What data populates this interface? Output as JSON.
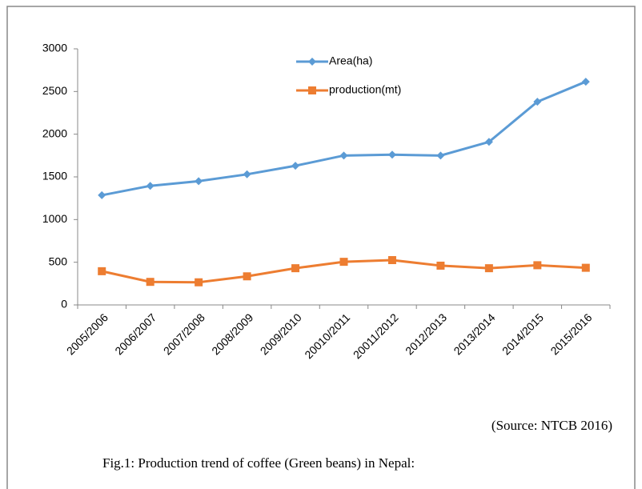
{
  "chart_data": {
    "type": "line",
    "categories": [
      "2005/2006",
      "2006/2007",
      "2007/2008",
      "2008/2009",
      "2009/2010",
      "20010/2011",
      "20011/2012",
      "2012/2013",
      "2013/2014",
      "2014/2015",
      "2015/2016"
    ],
    "series": [
      {
        "name": "Area(ha)",
        "color": "#5b9bd5",
        "marker": "diamond",
        "values": [
          1285,
          1395,
          1450,
          1530,
          1630,
          1750,
          1760,
          1750,
          1910,
          2380,
          2615
        ]
      },
      {
        "name": "production(mt)",
        "color": "#ed7d31",
        "marker": "square",
        "values": [
          395,
          270,
          265,
          335,
          430,
          505,
          525,
          460,
          430,
          465,
          435
        ]
      }
    ],
    "ylim": [
      0,
      3000
    ],
    "yticks": [
      0,
      500,
      1000,
      1500,
      2000,
      2500,
      3000
    ],
    "grid": false,
    "legend": "top",
    "annotations": [
      "(Source: NTCB 2016)",
      "Fig.1: Production trend of coffee (Green beans) in Nepal:"
    ]
  }
}
